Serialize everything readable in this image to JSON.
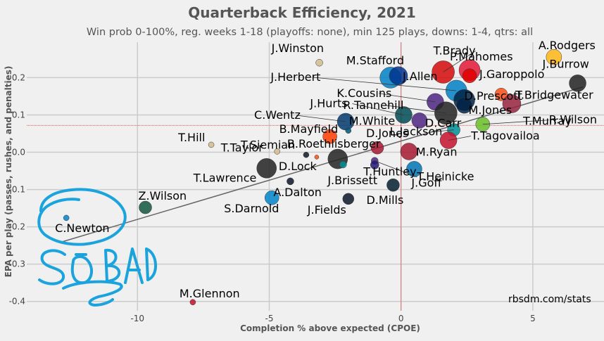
{
  "chart_data": {
    "type": "scatter",
    "title": "Quarterback Efficiency, 2021",
    "subtitle": "Win prob 0-100%, reg. weeks 1-18 (playoffs: none), min 125 plays, downs: 1-4, qtrs: all",
    "xlabel": "Completion % above expected (CPOE)",
    "ylabel": "EPA per play (passes, rushes, and penalties)",
    "xlim": [
      -14.2,
      7.7
    ],
    "ylim": [
      -0.425,
      0.295
    ],
    "xticks": [
      -10,
      -5,
      0,
      5
    ],
    "yticks": [
      -0.4,
      -0.3,
      -0.2,
      -0.1,
      0.0,
      0.1,
      0.2
    ],
    "grid": true,
    "mean_x": 0,
    "mean_y": 0.072,
    "trendline": {
      "x1": -12.9,
      "y1": -0.241,
      "x2": 6.9,
      "y2": 0.175
    },
    "credit": "rbsdm.com/stats",
    "annotation": "SO BAD",
    "points": [
      {
        "name": "J.Winston",
        "x": -3.1,
        "y": 0.24,
        "size": 5,
        "color": "#D3BC8D"
      },
      {
        "name": "A.Rodgers",
        "x": 5.8,
        "y": 0.255,
        "size": 11,
        "color": "#FFB612"
      },
      {
        "name": "T.Brady",
        "x": 1.6,
        "y": 0.215,
        "size": 16,
        "color": "#D50A0A"
      },
      {
        "name": "P.Mahomes",
        "x": 2.6,
        "y": 0.22,
        "size": 15,
        "color": "#E31837"
      },
      {
        "name": "J.Burrow",
        "x": 6.7,
        "y": 0.185,
        "size": 12,
        "color": "#222222"
      },
      {
        "name": "M.Stafford",
        "x": -0.4,
        "y": 0.2,
        "size": 15,
        "color": "#0080C6"
      },
      {
        "name": "J.Allen",
        "x": -0.1,
        "y": 0.205,
        "size": 13,
        "color": "#00338D"
      },
      {
        "name": "J.Garoppolo",
        "x": 2.6,
        "y": 0.205,
        "size": 10,
        "color": "#E00000"
      },
      {
        "name": "J.Herbert",
        "x": 2.1,
        "y": 0.165,
        "size": 15,
        "color": "#0080C6"
      },
      {
        "name": "K.Cousins",
        "x": 1.3,
        "y": 0.135,
        "size": 12,
        "color": "#4F2683"
      },
      {
        "name": "T.Bridgewater",
        "x": 3.8,
        "y": 0.155,
        "size": 9,
        "color": "#FB4F14"
      },
      {
        "name": "D.Prescott",
        "x": 2.4,
        "y": 0.14,
        "size": 15,
        "color": "#002244"
      },
      {
        "name": "R.Tannehill",
        "x": 1.7,
        "y": 0.105,
        "size": 16,
        "color": "#222222"
      },
      {
        "name": "T.Murray",
        "x": 4.2,
        "y": 0.13,
        "size": 13,
        "color": "#97233F"
      },
      {
        "name": "M.Jones",
        "x": 2.4,
        "y": 0.125,
        "size": 11,
        "color": "#002244"
      },
      {
        "name": "C.Wentz",
        "x": -2.1,
        "y": 0.082,
        "size": 12,
        "color": "#003A70"
      },
      {
        "name": "J.Hurts",
        "x": 0.1,
        "y": 0.1,
        "size": 12,
        "color": "#004C54"
      },
      {
        "name": "R.Wilson",
        "x": 3.1,
        "y": 0.075,
        "size": 10,
        "color": "#69BE28"
      },
      {
        "name": "M.White",
        "x": -2.0,
        "y": 0.058,
        "size": 4,
        "color": "#005778"
      },
      {
        "name": "D.Carr",
        "x": 0.7,
        "y": 0.085,
        "size": 11,
        "color": "#4F2683"
      },
      {
        "name": "L.Jackson",
        "x": 2.0,
        "y": 0.06,
        "size": 9,
        "color": "#008E97"
      },
      {
        "name": "B.Mayfield",
        "x": -2.7,
        "y": 0.042,
        "size": 10,
        "color": "#FF3C00"
      },
      {
        "name": "T.Tagovailoa",
        "x": 1.8,
        "y": 0.032,
        "size": 12,
        "color": "#C8102E"
      },
      {
        "name": "T.Hill",
        "x": -7.2,
        "y": 0.02,
        "size": 4,
        "color": "#D3BC8D"
      },
      {
        "name": "D.Jones",
        "x": -0.9,
        "y": 0.012,
        "size": 9,
        "color": "#A71930"
      },
      {
        "name": "T.Taylor",
        "x": -4.7,
        "y": 0.002,
        "size": 4,
        "color": "#D3BC8D"
      },
      {
        "name": "B.Roethlisberger",
        "x": -3.6,
        "y": -0.007,
        "size": 4,
        "color": "#101820"
      },
      {
        "name": "M.Ryan",
        "x": 0.3,
        "y": 0.002,
        "size": 12,
        "color": "#A71930"
      },
      {
        "name": "T.Siemian",
        "x": -3.2,
        "y": -0.013,
        "size": 3,
        "color": "#FB4F14"
      },
      {
        "name": "D.Lock",
        "x": -2.4,
        "y": -0.018,
        "size": 14,
        "color": "#222222"
      },
      {
        "name": "T.Heinicke",
        "x": -1.0,
        "y": -0.023,
        "size": 5,
        "color": "#4F2683"
      },
      {
        "name": "T.Lawrence",
        "x": -5.1,
        "y": -0.043,
        "size": 14,
        "color": "#222222"
      },
      {
        "name": "J.Brissett",
        "x": -2.2,
        "y": -0.033,
        "size": 5,
        "color": "#008E97"
      },
      {
        "name": "T.Huntley",
        "x": -1.0,
        "y": -0.034,
        "size": 6,
        "color": "#241773"
      },
      {
        "name": "J.Goff",
        "x": 0.5,
        "y": -0.045,
        "size": 11,
        "color": "#0076B6"
      },
      {
        "name": "A.Dalton",
        "x": -4.2,
        "y": -0.078,
        "size": 5,
        "color": "#0B162A"
      },
      {
        "name": "D.Mills",
        "x": -0.3,
        "y": -0.088,
        "size": 9,
        "color": "#03202F"
      },
      {
        "name": "S.Darnold",
        "x": -4.9,
        "y": -0.122,
        "size": 10,
        "color": "#0085CA"
      },
      {
        "name": "J.Fields",
        "x": -2.0,
        "y": -0.125,
        "size": 8,
        "color": "#0B162A"
      },
      {
        "name": "Z.Wilson",
        "x": -9.7,
        "y": -0.148,
        "size": 9,
        "color": "#125740"
      },
      {
        "name": "C.Newton",
        "x": -12.7,
        "y": -0.176,
        "size": 4,
        "color": "#0085CA"
      },
      {
        "name": "M.Glennon",
        "x": -7.9,
        "y": -0.402,
        "size": 4,
        "color": "#C8102E"
      }
    ]
  }
}
